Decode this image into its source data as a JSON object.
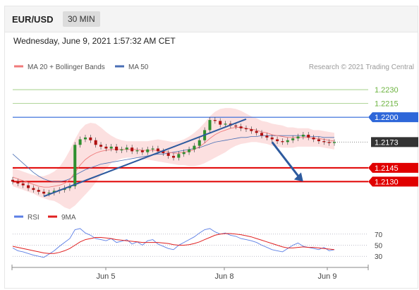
{
  "header": {
    "pair": "EUR/USD",
    "timeframe": "30 MIN"
  },
  "datetime": "Wednesday, June 9, 2021 1:57:32 AM CET",
  "legend": {
    "ma_bb": "MA 20 + Bollinger Bands",
    "ma50": "MA 50",
    "credit": "Research © 2021 Trading Central",
    "rsi": "RSI",
    "rsi_ma": "9MA"
  },
  "colors": {
    "green_level": "#6cb33f",
    "blue_level": "#2e67d9",
    "red_level": "#e00000",
    "current": "#333333",
    "candle_up": "#2f8f2f",
    "candle_down": "#b01010",
    "ma20": "#f07a7a",
    "bollinger_fill": "#fbd6d6",
    "ma50": "#4a6fb5",
    "trendline": "#2d5a9e",
    "rsi": "#5b7ee5",
    "rsi_ma": "#e02020"
  },
  "chart_data": [
    {
      "type": "candlestick",
      "symbol": "EUR/USD",
      "timeframe": "30 MIN",
      "ylim": [
        1.2105,
        1.225
      ],
      "x_ticks": [
        "Jun 5",
        "Jun 8",
        "Jun 9"
      ],
      "levels": [
        {
          "value": 1.223,
          "label": "1.2230",
          "kind": "resistance",
          "color": "green"
        },
        {
          "value": 1.2215,
          "label": "1.2215",
          "kind": "resistance",
          "color": "green"
        },
        {
          "value": 1.22,
          "label": "1.2200",
          "kind": "pivot",
          "color": "blue"
        },
        {
          "value": 1.2173,
          "label": "1.2173",
          "kind": "last_price",
          "color": "dark"
        },
        {
          "value": 1.2145,
          "label": "1.2145",
          "kind": "support",
          "color": "red"
        },
        {
          "value": 1.213,
          "label": "1.2130",
          "kind": "support",
          "color": "red"
        }
      ],
      "close_series": [
        1.213,
        1.2128,
        1.2126,
        1.2123,
        1.2121,
        1.2119,
        1.2117,
        1.2118,
        1.212,
        1.2121,
        1.2123,
        1.2125,
        1.217,
        1.2176,
        1.2178,
        1.2175,
        1.217,
        1.2168,
        1.2166,
        1.2168,
        1.2164,
        1.2165,
        1.2167,
        1.2163,
        1.2164,
        1.2162,
        1.2165,
        1.2166,
        1.2163,
        1.2161,
        1.2158,
        1.2156,
        1.216,
        1.2162,
        1.2165,
        1.2169,
        1.2175,
        1.2186,
        1.2197,
        1.2196,
        1.2192,
        1.2193,
        1.2191,
        1.219,
        1.2188,
        1.2187,
        1.2185,
        1.2183,
        1.218,
        1.2178,
        1.2176,
        1.2174,
        1.2173,
        1.2175,
        1.2177,
        1.2179,
        1.2181,
        1.2178,
        1.2176,
        1.2174,
        1.2173,
        1.2172,
        1.2173
      ],
      "ma20": [
        1.2135,
        1.2133,
        1.2131,
        1.2129,
        1.2127,
        1.2125,
        1.2124,
        1.2124,
        1.2125,
        1.2126,
        1.2128,
        1.2132,
        1.214,
        1.2148,
        1.2154,
        1.2158,
        1.2161,
        1.2163,
        1.2164,
        1.2165,
        1.2165,
        1.2165,
        1.2165,
        1.2165,
        1.2165,
        1.2164,
        1.2164,
        1.2164,
        1.2164,
        1.2163,
        1.2162,
        1.2161,
        1.2161,
        1.2162,
        1.2163,
        1.2165,
        1.2168,
        1.2172,
        1.2177,
        1.2181,
        1.2184,
        1.2186,
        1.2188,
        1.2189,
        1.2189,
        1.2188,
        1.2187,
        1.2186,
        1.2184,
        1.2183,
        1.2181,
        1.218,
        1.2179,
        1.2178,
        1.2178,
        1.2178,
        1.2178,
        1.2178,
        1.2177,
        1.2177,
        1.2176,
        1.2175,
        1.2174
      ],
      "ma50": [
        1.216,
        1.2155,
        1.215,
        1.2145,
        1.214,
        1.2136,
        1.2133,
        1.2131,
        1.213,
        1.213,
        1.2131,
        1.2133,
        1.2137,
        1.214,
        1.2143,
        1.2145,
        1.2147,
        1.2149,
        1.215,
        1.2151,
        1.2152,
        1.2153,
        1.2154,
        1.2155,
        1.2156,
        1.2157,
        1.2158,
        1.2159,
        1.216,
        1.216,
        1.2161,
        1.2162,
        1.2163,
        1.2164,
        1.2165,
        1.2166,
        1.2167,
        1.2169,
        1.2171,
        1.2173,
        1.2174,
        1.2175,
        1.2176,
        1.2177,
        1.2178,
        1.2178,
        1.2179,
        1.2179,
        1.218,
        1.218,
        1.218,
        1.218,
        1.218,
        1.218,
        1.218,
        1.218,
        1.218,
        1.2179,
        1.2179,
        1.2179,
        1.2178,
        1.2178,
        1.2178
      ],
      "bollinger_width": [
        0.001,
        0.001,
        0.001,
        0.001,
        0.001,
        0.0011,
        0.0012,
        0.0014,
        0.0016,
        0.002,
        0.0026,
        0.0032,
        0.0036,
        0.0038,
        0.0038,
        0.0036,
        0.0032,
        0.0026,
        0.002,
        0.0015,
        0.0012,
        0.001,
        0.0009,
        0.0009,
        0.0009,
        0.001,
        0.001,
        0.0011,
        0.0012,
        0.0012,
        0.0012,
        0.0012,
        0.0013,
        0.0014,
        0.0016,
        0.0018,
        0.002,
        0.0022,
        0.0024,
        0.0025,
        0.0025,
        0.0024,
        0.0022,
        0.002,
        0.0018,
        0.0016,
        0.0014,
        0.0013,
        0.0012,
        0.0012,
        0.0012,
        0.0012,
        0.0012,
        0.0011,
        0.0011,
        0.001,
        0.001,
        0.001,
        0.0009,
        0.0009,
        0.0009,
        0.0009,
        0.0009
      ],
      "trendlines": [
        {
          "from": [
            6,
            1.2114
          ],
          "to": [
            45,
            1.2198
          ]
        }
      ],
      "projection_arrow": {
        "from": [
          50,
          1.2173
        ],
        "to": [
          56,
          1.213
        ]
      }
    },
    {
      "type": "line",
      "title": "RSI",
      "y_ticks": [
        "70",
        "50",
        "30"
      ],
      "ylim": [
        15,
        85
      ],
      "series": [
        {
          "name": "RSI",
          "values": [
            45,
            40,
            38,
            35,
            32,
            30,
            28,
            34,
            40,
            48,
            55,
            62,
            78,
            80,
            72,
            68,
            62,
            60,
            58,
            62,
            55,
            57,
            60,
            52,
            56,
            50,
            58,
            60,
            52,
            48,
            44,
            42,
            50,
            55,
            60,
            65,
            72,
            78,
            80,
            74,
            70,
            72,
            68,
            66,
            62,
            60,
            58,
            55,
            50,
            46,
            42,
            40,
            38,
            44,
            50,
            54,
            48,
            46,
            44,
            42,
            46,
            40,
            42
          ]
        },
        {
          "name": "9MA",
          "values": [
            48,
            46,
            44,
            42,
            40,
            38,
            36,
            35,
            35,
            37,
            40,
            44,
            50,
            56,
            60,
            62,
            64,
            64,
            63,
            62,
            60,
            59,
            58,
            57,
            56,
            55,
            55,
            55,
            55,
            54,
            53,
            51,
            50,
            50,
            51,
            53,
            56,
            60,
            64,
            68,
            70,
            71,
            71,
            70,
            69,
            67,
            65,
            62,
            59,
            56,
            53,
            50,
            47,
            45,
            45,
            46,
            47,
            46,
            46,
            45,
            44,
            43,
            42
          ]
        }
      ]
    }
  ]
}
